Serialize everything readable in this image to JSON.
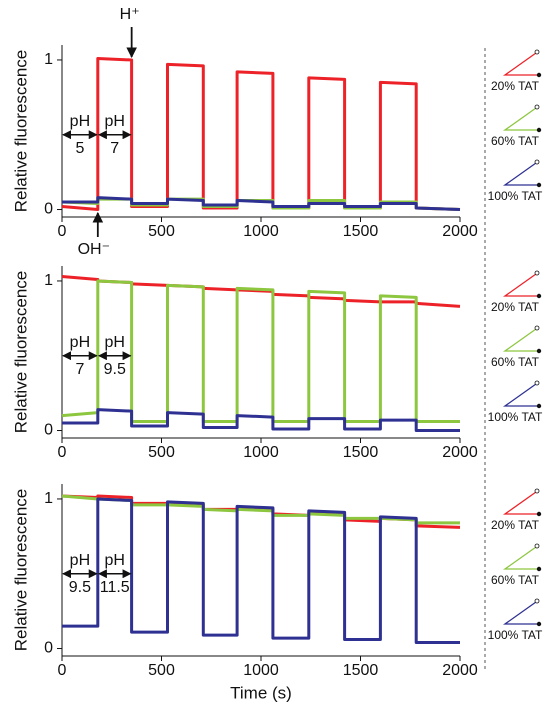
{
  "chart_data": [
    {
      "type": "line",
      "y_label": "Relative fluorescence",
      "x": [
        0,
        180,
        180,
        350,
        350,
        530,
        530,
        710,
        710,
        880,
        880,
        1060,
        1060,
        1240,
        1240,
        1420,
        1420,
        1600,
        1600,
        1780,
        1780,
        2000
      ],
      "series": [
        {
          "name": "20% TAT",
          "color": "#ec2228",
          "values": [
            0.02,
            0.0,
            1.01,
            1.0,
            0.02,
            0.02,
            0.97,
            0.96,
            0.01,
            0.01,
            0.92,
            0.91,
            0.01,
            0.01,
            0.88,
            0.87,
            0.01,
            0.01,
            0.85,
            0.84,
            0.01,
            0.0
          ]
        },
        {
          "name": "60% TAT",
          "color": "#8dc63f",
          "values": [
            0.05,
            0.04,
            0.07,
            0.07,
            0.03,
            0.03,
            0.07,
            0.07,
            0.02,
            0.02,
            0.06,
            0.06,
            0.01,
            0.01,
            0.06,
            0.06,
            0.01,
            0.01,
            0.05,
            0.05,
            0.01,
            0.0
          ]
        },
        {
          "name": "100% TAT",
          "color": "#2e3192",
          "values": [
            0.05,
            0.05,
            0.08,
            0.07,
            0.04,
            0.04,
            0.07,
            0.06,
            0.03,
            0.03,
            0.06,
            0.05,
            0.02,
            0.02,
            0.04,
            0.04,
            0.02,
            0.02,
            0.04,
            0.04,
            0.01,
            0.0
          ]
        }
      ],
      "xlim": [
        0,
        2000
      ],
      "xticks": [
        0,
        500,
        1000,
        1500,
        2000
      ],
      "ylim": [
        -0.05,
        1.1
      ],
      "yticks": [
        0,
        1
      ],
      "annotations": [
        "pH",
        "5",
        "pH",
        "7"
      ],
      "markers": [
        "H⁺",
        "OH⁻"
      ]
    },
    {
      "type": "line",
      "y_label": "Relative fluorescence",
      "x": [
        0,
        180,
        180,
        350,
        350,
        530,
        530,
        710,
        710,
        880,
        880,
        1060,
        1060,
        1240,
        1240,
        1420,
        1420,
        1600,
        1600,
        1780,
        1780,
        2000
      ],
      "series": [
        {
          "name": "20% TAT",
          "color": "#ec2228",
          "values": [
            1.03,
            1.01,
            1.0,
            0.99,
            0.98,
            0.97,
            0.97,
            0.96,
            0.95,
            0.94,
            0.94,
            0.93,
            0.91,
            0.9,
            0.89,
            0.88,
            0.87,
            0.86,
            0.86,
            0.86,
            0.85,
            0.83
          ]
        },
        {
          "name": "60% TAT",
          "color": "#8dc63f",
          "values": [
            0.1,
            0.12,
            1.0,
            0.99,
            0.06,
            0.06,
            0.97,
            0.96,
            0.06,
            0.06,
            0.95,
            0.94,
            0.06,
            0.06,
            0.93,
            0.92,
            0.06,
            0.06,
            0.9,
            0.89,
            0.06,
            0.06
          ]
        },
        {
          "name": "100% TAT",
          "color": "#2e3192",
          "values": [
            0.05,
            0.05,
            0.14,
            0.13,
            0.03,
            0.03,
            0.12,
            0.11,
            0.02,
            0.02,
            0.1,
            0.09,
            0.01,
            0.01,
            0.08,
            0.08,
            0.01,
            0.01,
            0.07,
            0.07,
            0.0,
            0.0
          ]
        }
      ],
      "xlim": [
        0,
        2000
      ],
      "xticks": [
        0,
        500,
        1000,
        1500,
        2000
      ],
      "ylim": [
        -0.05,
        1.1
      ],
      "yticks": [
        0,
        1
      ],
      "annotations": [
        "pH",
        "7",
        "pH",
        "9.5"
      ]
    },
    {
      "type": "line",
      "y_label": "Relative fluorescence",
      "x_label": "Time (s)",
      "x": [
        0,
        180,
        180,
        350,
        350,
        530,
        530,
        710,
        710,
        880,
        880,
        1060,
        1060,
        1240,
        1240,
        1420,
        1420,
        1600,
        1600,
        1780,
        1780,
        2000
      ],
      "series": [
        {
          "name": "20% TAT",
          "color": "#ec2228",
          "values": [
            1.02,
            1.01,
            1.02,
            1.01,
            0.97,
            0.97,
            0.97,
            0.96,
            0.93,
            0.93,
            0.94,
            0.93,
            0.9,
            0.89,
            0.91,
            0.9,
            0.86,
            0.85,
            0.87,
            0.86,
            0.82,
            0.81
          ]
        },
        {
          "name": "60% TAT",
          "color": "#8dc63f",
          "values": [
            1.02,
            1.0,
            1.0,
            0.99,
            0.96,
            0.96,
            0.96,
            0.95,
            0.93,
            0.92,
            0.93,
            0.92,
            0.89,
            0.89,
            0.9,
            0.89,
            0.87,
            0.87,
            0.87,
            0.86,
            0.84,
            0.84
          ]
        },
        {
          "name": "100% TAT",
          "color": "#2e3192",
          "values": [
            0.15,
            0.15,
            1.0,
            0.99,
            0.11,
            0.11,
            0.98,
            0.97,
            0.09,
            0.09,
            0.95,
            0.94,
            0.07,
            0.07,
            0.92,
            0.91,
            0.06,
            0.06,
            0.88,
            0.87,
            0.04,
            0.04
          ]
        }
      ],
      "xlim": [
        0,
        2000
      ],
      "xticks": [
        0,
        500,
        1000,
        1500,
        2000
      ],
      "ylim": [
        -0.05,
        1.1
      ],
      "yticks": [
        0,
        1
      ],
      "annotations": [
        "pH",
        "9.5",
        "pH",
        "11.5"
      ]
    }
  ]
}
